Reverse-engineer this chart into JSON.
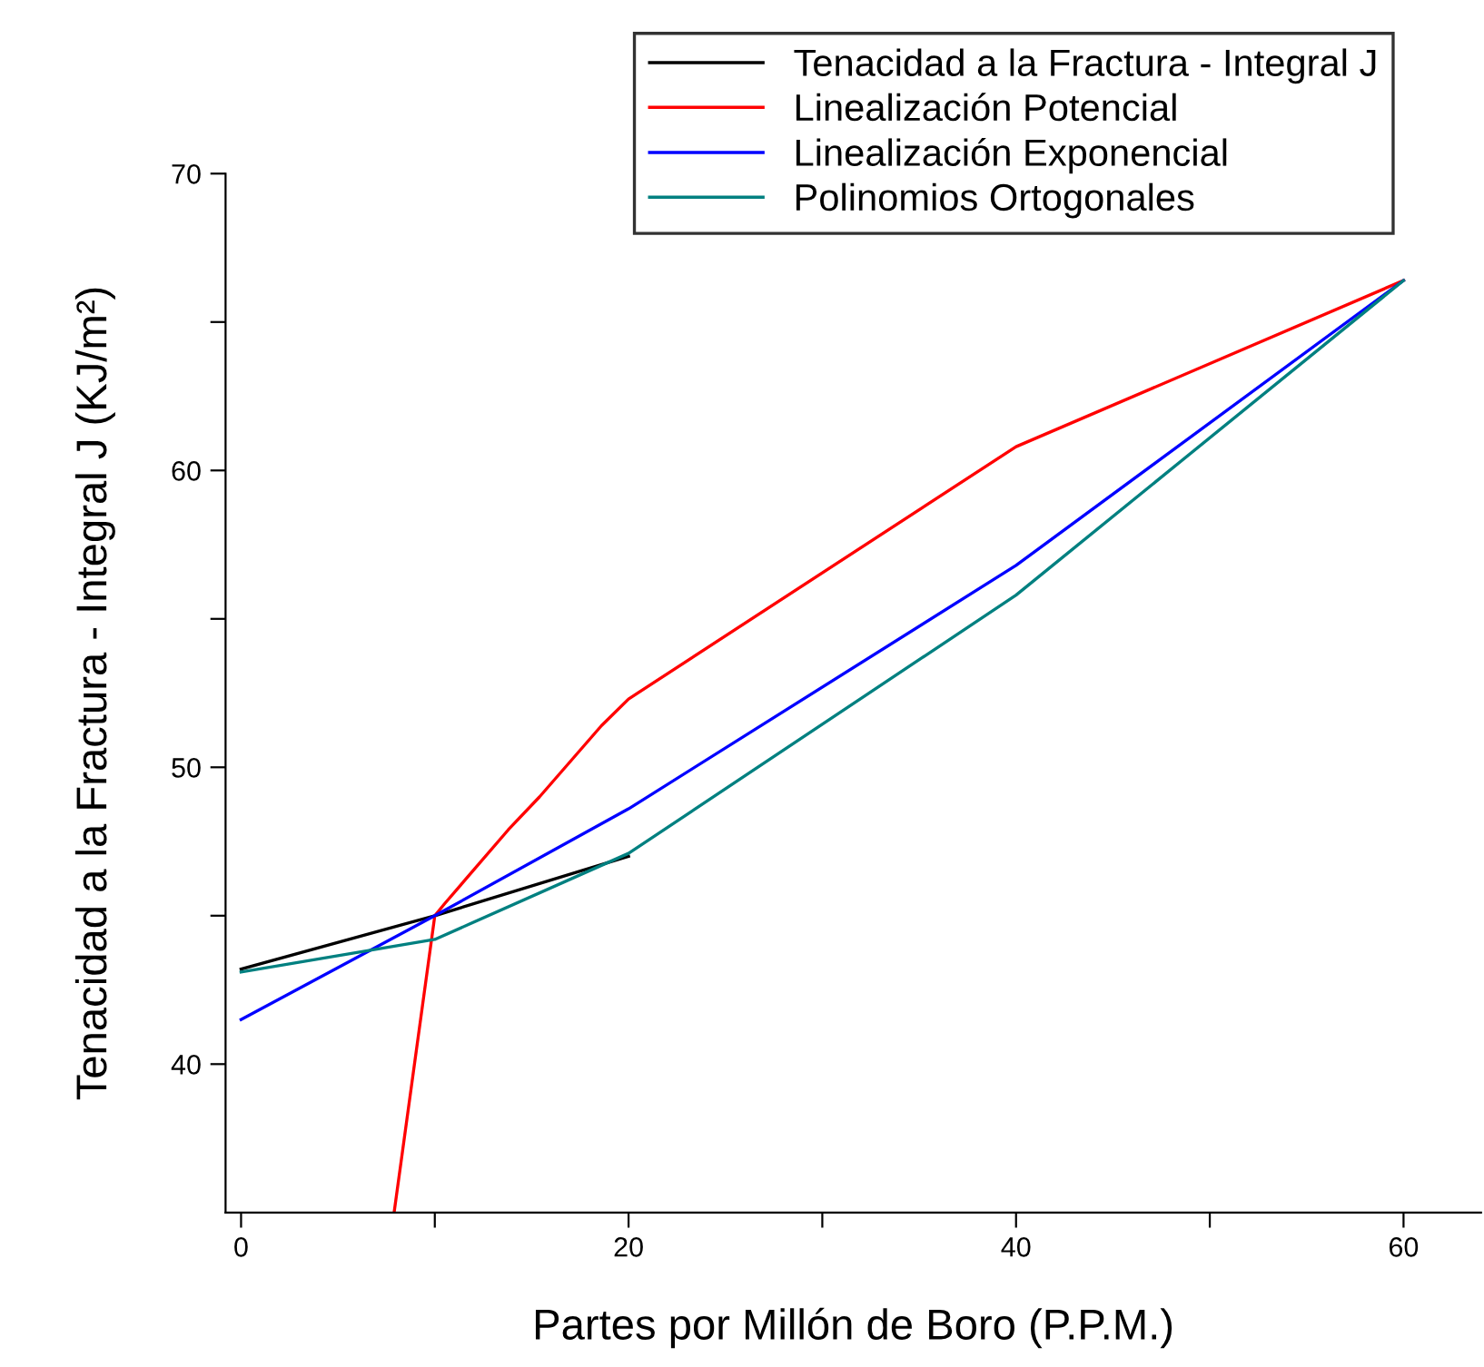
{
  "chart_data": {
    "type": "line",
    "xlabel": "Partes por Millón de Boro (P.P.M.)",
    "ylabel": "Tenacidad a la Fractura - Integral J (KJ/m²)",
    "series": [
      {
        "name": "Tenacidad a la Fractura - Integral J",
        "color": "#000000",
        "x": [
          0,
          10,
          20
        ],
        "values": [
          43.2,
          45,
          47
        ]
      },
      {
        "name": "Linealización Potencial",
        "color": "#ff0000",
        "x": [
          7.9,
          10,
          10.5,
          13.8,
          15.4,
          18.6,
          20,
          40,
          60
        ],
        "values": [
          35,
          45,
          45.4,
          47.9,
          49,
          51.4,
          52.3,
          60.8,
          66.4
        ]
      },
      {
        "name": "Linealización Exponencial",
        "color": "#0000ff",
        "x": [
          0,
          10,
          20,
          40,
          60
        ],
        "values": [
          41.5,
          45,
          48.6,
          56.8,
          66.4
        ]
      },
      {
        "name": "Polinomios Ortogonales",
        "color": "#008080",
        "x": [
          0,
          10,
          20,
          40,
          60
        ],
        "values": [
          43.1,
          44.2,
          47.1,
          55.8,
          66.4
        ]
      }
    ],
    "xlim": [
      -0.8,
      64
    ],
    "xticks": [
      0,
      {
        "value": 10,
        "label": null
      },
      20,
      {
        "value": 30,
        "label": null
      },
      40,
      {
        "value": 50,
        "label": null
      },
      60
    ],
    "ylim": [
      35,
      70
    ],
    "yticks": [
      40,
      {
        "value": 45,
        "label": null
      },
      50,
      {
        "value": 55,
        "label": null
      },
      60,
      {
        "value": 65,
        "label": null
      },
      70
    ],
    "grid": false,
    "legend": "top right",
    "marker": "none",
    "line_style": "solid"
  }
}
